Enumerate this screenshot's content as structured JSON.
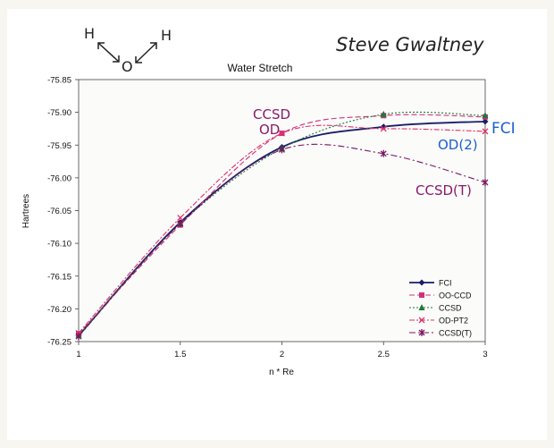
{
  "annotations": {
    "author": "Steve Gwaltney",
    "molecule": {
      "h_left": "H",
      "h_right": "H",
      "o": "O"
    },
    "ccsd": "CCSD",
    "od": "OD",
    "fci": "FCI",
    "od2": "OD(2)",
    "ccsdt": "CCSD(T)"
  },
  "colors": {
    "handwriting_purple": "#8a1a6a",
    "handwriting_blue": "#1a5fd0",
    "FCI": "#1b1d6a",
    "OO-CCD": "#d0307a",
    "CCSD": "#1c7a3a",
    "OD-PT2": "#e0306a",
    "CCSD(T)": "#7a1460"
  },
  "chart_data": {
    "type": "line",
    "title": "Water Stretch",
    "xlabel": "n * Re",
    "ylabel": "Hartrees",
    "x": [
      1,
      1.5,
      2,
      2.5,
      3
    ],
    "xlim": [
      1,
      3
    ],
    "ylim": [
      -76.25,
      -75.85
    ],
    "xticks": [
      "1",
      "1.5",
      "2",
      "2.5",
      "3"
    ],
    "yticks": [
      "-75.85",
      "-75.90",
      "-75.95",
      "-76.00",
      "-76.05",
      "-76.10",
      "-76.15",
      "-76.20",
      "-76.25"
    ],
    "legend_position": "bottom-right",
    "grid": false,
    "series": [
      {
        "name": "FCI",
        "values": [
          -76.241,
          -76.068,
          -75.953,
          -75.922,
          -75.914
        ]
      },
      {
        "name": "OO-CCD",
        "values": [
          -76.238,
          -76.072,
          -75.932,
          -75.905,
          -75.907
        ]
      },
      {
        "name": "CCSD",
        "values": [
          -76.24,
          -76.07,
          -75.955,
          -75.903,
          -75.905
        ]
      },
      {
        "name": "OD-PT2",
        "values": [
          -76.237,
          -76.061,
          -75.932,
          -75.925,
          -75.929
        ]
      },
      {
        "name": "CCSD(T)",
        "values": [
          -76.242,
          -76.07,
          -75.957,
          -75.963,
          -76.007
        ]
      }
    ]
  }
}
